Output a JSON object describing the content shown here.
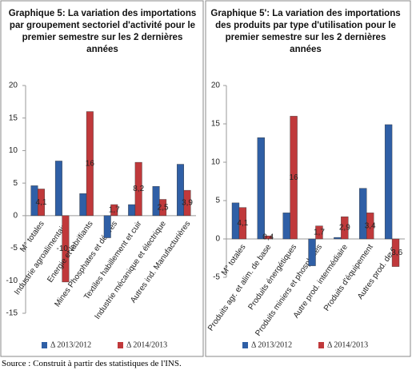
{
  "chart_data": [
    {
      "type": "bar",
      "title": "Graphique 5: La variation des importations par groupement sectoriel d'activité pour le premier semestre sur les 2 dernières années",
      "categories": [
        "M° totales",
        "Industrie agroalimentaire",
        "Energie et lubrifiants",
        "Mines Phosphates et dérivés",
        "Textiles habillement et cuir",
        "Industrie mécanique et électrique",
        "Autres ind. Manufacturières"
      ],
      "series": [
        {
          "name": "Δ 2013/2012",
          "color": "#2f5fa6",
          "values": [
            4.6,
            8.4,
            3.4,
            -3.4,
            1.7,
            4.5,
            7.9
          ]
        },
        {
          "name": "Δ 2014/2013",
          "color": "#c0393b",
          "values": [
            4.1,
            -10.2,
            16,
            1.7,
            8.2,
            2.5,
            3.9
          ],
          "value_labels": [
            "4,1",
            "-10,2",
            "16",
            "1,7",
            "8,2",
            "2,5",
            "3,9"
          ]
        }
      ],
      "ylim": [
        -15,
        20
      ],
      "yticks": [
        -15,
        -10,
        -5,
        0,
        5,
        10,
        15,
        20
      ],
      "grid": false
    },
    {
      "type": "bar",
      "title": "Graphique 5': La variation des importations des produits par type d'utilisation pour le premier semestre sur les 2 dernières années",
      "categories": [
        "M° totales",
        "Produits agr. et alim. de base",
        "Produits énergétiques",
        "Produits miniers et phosphates",
        "Autre prod. intermédiaire",
        "Produits d'équipement",
        "Autres prod. de C."
      ],
      "series": [
        {
          "name": "Δ 2013/2012",
          "color": "#2f5fa6",
          "values": [
            4.7,
            13.2,
            3.4,
            -3.5,
            0.2,
            6.6,
            14.9
          ]
        },
        {
          "name": "Δ 2014/2013",
          "color": "#c0393b",
          "values": [
            4.1,
            0.4,
            16,
            1.7,
            2.9,
            3.4,
            -3.6
          ],
          "value_labels": [
            "4,1",
            "0,4",
            "16",
            "1,7",
            "2,9",
            "3,4",
            "-3,6"
          ]
        }
      ],
      "ylim": [
        -5,
        20
      ],
      "yticks": [
        -5,
        0,
        5,
        10,
        15,
        20
      ],
      "grid": false
    }
  ],
  "source": "Source : Construit à partir des statistiques de l'INS."
}
